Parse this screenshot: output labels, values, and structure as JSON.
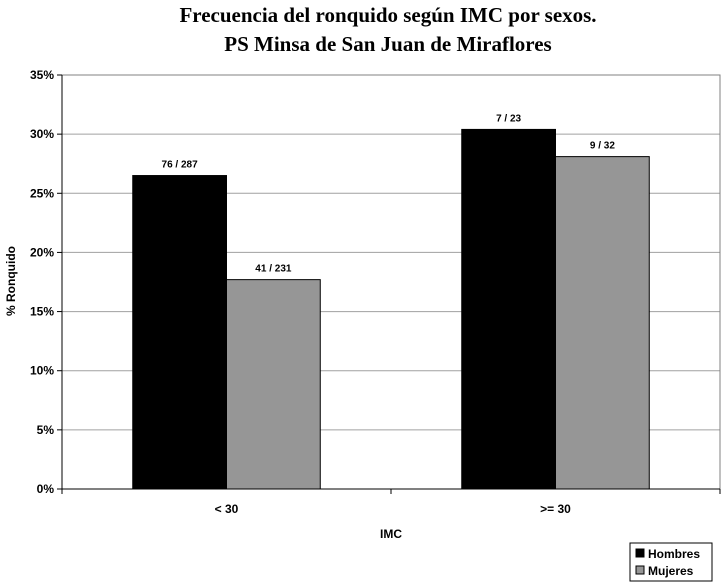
{
  "chart_data": {
    "type": "bar",
    "title": "Frecuencia del ronquido según  IMC por sexos.",
    "subtitle": "PS Minsa de San Juan de Miraflores",
    "xlabel": "IMC",
    "ylabel": "% Ronquido",
    "categories": [
      "< 30",
      ">= 30"
    ],
    "ylim": [
      0,
      35
    ],
    "yticks": [
      "0%",
      "5%",
      "10%",
      "15%",
      "20%",
      "25%",
      "30%",
      "35%"
    ],
    "grid": true,
    "legend_position": "bottom-right",
    "series": [
      {
        "name": "Hombres",
        "color": "#000000",
        "values": [
          26.5,
          30.4
        ],
        "labels": [
          "76 / 287",
          "7 / 23"
        ]
      },
      {
        "name": "Mujeres",
        "color": "#969696",
        "values": [
          17.7,
          28.1
        ],
        "labels": [
          "41 / 231",
          "9 / 32"
        ]
      }
    ]
  }
}
